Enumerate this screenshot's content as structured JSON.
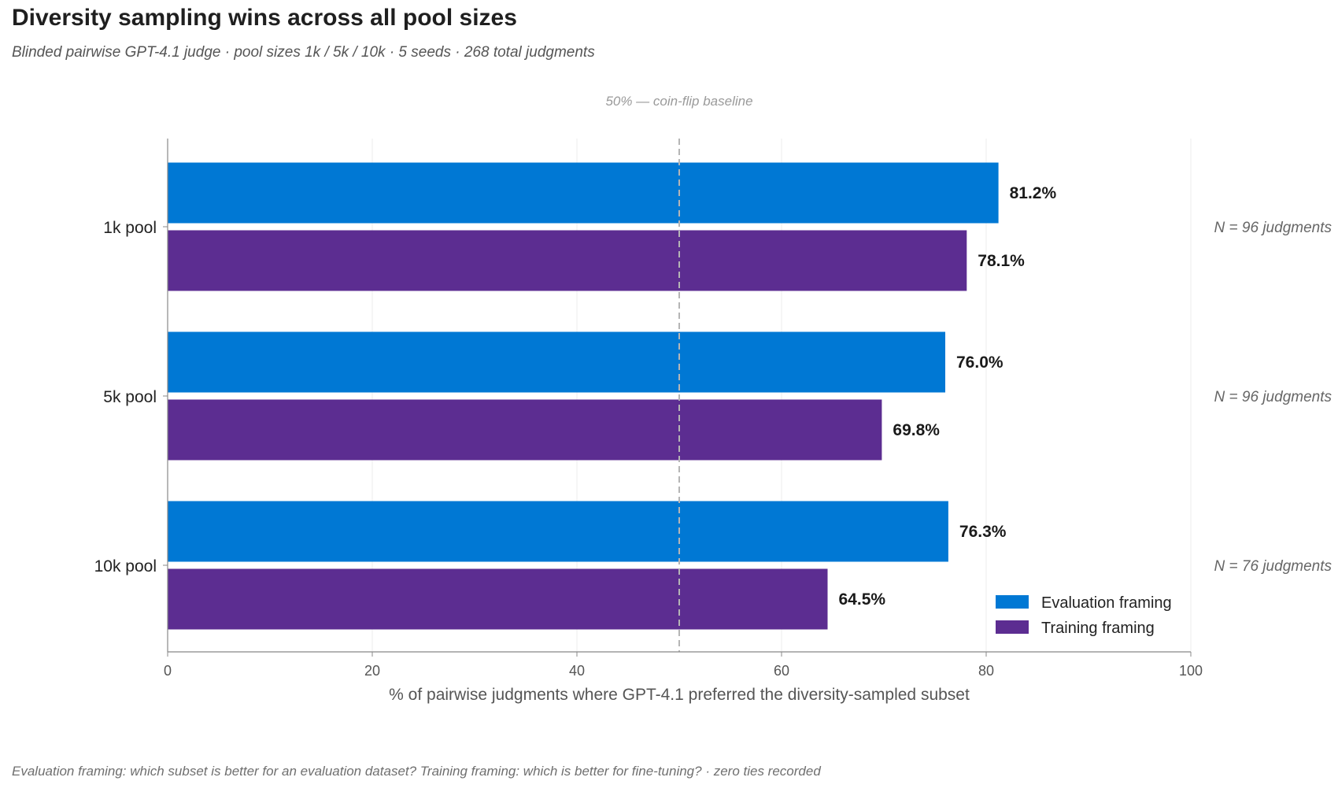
{
  "chart_data": {
    "type": "bar",
    "orientation": "horizontal",
    "title": "Diversity sampling wins across all pool sizes",
    "subtitle": "Blinded pairwise GPT-4.1 judge · pool sizes 1k / 5k / 10k · 5 seeds · 268 total judgments",
    "categories": [
      "1k pool",
      "5k pool",
      "10k pool"
    ],
    "series": [
      {
        "name": "Evaluation framing",
        "values": [
          81.2,
          76.0,
          76.3
        ],
        "color": "#0078d4"
      },
      {
        "name": "Training framing",
        "values": [
          78.1,
          69.8,
          64.5
        ],
        "color": "#5c2d91"
      }
    ],
    "value_labels": {
      "Evaluation framing": [
        "81.2%",
        "76.0%",
        "76.3%"
      ],
      "Training framing": [
        "78.1%",
        "69.8%",
        "64.5%"
      ]
    },
    "n_labels": [
      "N = 96 judgments",
      "N = 96 judgments",
      "N = 76 judgments"
    ],
    "xlabel": "% of pairwise judgments where GPT-4.1 preferred the diversity-sampled subset",
    "ylabel": "",
    "xlim": [
      0,
      100
    ],
    "xticks": [
      0,
      20,
      40,
      60,
      80,
      100
    ],
    "xtick_labels": [
      "0",
      "20",
      "40",
      "60",
      "80",
      "100"
    ],
    "reference_line": {
      "value": 50,
      "label": "50% — coin-flip baseline",
      "style": "dashed"
    },
    "grid": "vertical",
    "legend_position": "bottom-right",
    "footnote": "Evaluation framing: which subset is better for an evaluation dataset?  Training framing: which is better for fine-tuning?  ·  zero ties recorded"
  }
}
